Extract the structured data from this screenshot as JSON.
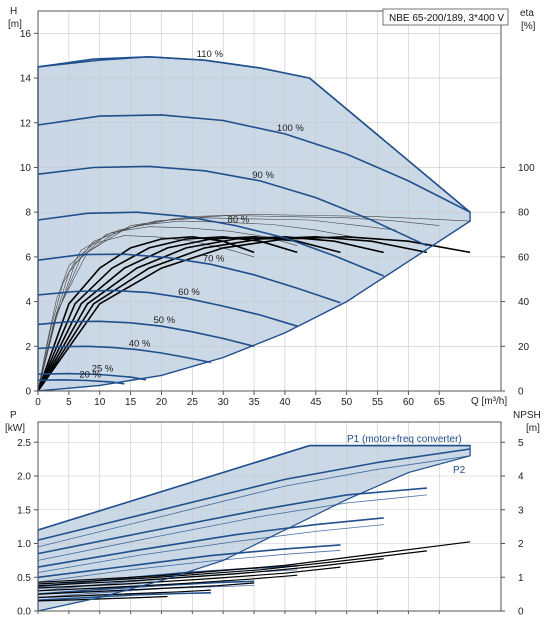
{
  "colors": {
    "grid": "#c8c8c8",
    "axis": "#555555",
    "fill_main": "#c5d4e3",
    "fill_light": "#e6eff9",
    "curve_blue": "#1f4f8c",
    "curve_black": "#000000",
    "thin_gray": "#444444"
  },
  "chart_data": [
    {
      "type": "line",
      "title": "NBE 65-200/189, 3*400 V",
      "y_label_left": "H",
      "y_unit_left": "[m]",
      "y_label_right": "eta",
      "y_unit_right": "[%]",
      "x_label": "Q [m³/h]",
      "xlim": [
        0,
        75
      ],
      "ylim": [
        0,
        17
      ],
      "y2lim": [
        0,
        170
      ],
      "x_ticks": [
        "0",
        "5",
        "10",
        "15",
        "20",
        "25",
        "30",
        "35",
        "40",
        "45",
        "50",
        "55",
        "60",
        "65"
      ],
      "y_ticks": [
        "0",
        "2",
        "4",
        "6",
        "8",
        "10",
        "12",
        "14",
        "16"
      ],
      "y2_ticks": [
        "0",
        "20",
        "40",
        "60",
        "80",
        "100"
      ],
      "grid": true,
      "speed_curves": [
        {
          "label": "110 %",
          "x": [
            0,
            9,
            18,
            27,
            36,
            44,
            70
          ],
          "y": [
            14.5,
            14.85,
            14.95,
            14.8,
            14.45,
            14.0,
            8.0
          ]
        },
        {
          "label": "100 %",
          "x": [
            0,
            10,
            20,
            30,
            40,
            50,
            60,
            70
          ],
          "y": [
            11.9,
            12.3,
            12.35,
            12.1,
            11.5,
            10.6,
            9.4,
            8.0
          ]
        },
        {
          "label": "90 %",
          "x": [
            0,
            9,
            18,
            27,
            36,
            45,
            54,
            63
          ],
          "y": [
            9.7,
            10.0,
            10.05,
            9.85,
            9.4,
            8.65,
            7.65,
            6.5
          ]
        },
        {
          "label": "80 %",
          "x": [
            0,
            8,
            16,
            24,
            32,
            40,
            48,
            56
          ],
          "y": [
            7.65,
            7.95,
            8.0,
            7.8,
            7.4,
            6.85,
            6.05,
            5.15
          ]
        },
        {
          "label": "70 %",
          "x": [
            0,
            7,
            14,
            21,
            28,
            35,
            42,
            49
          ],
          "y": [
            5.85,
            6.1,
            6.12,
            5.97,
            5.67,
            5.2,
            4.6,
            3.95
          ]
        },
        {
          "label": "60 %",
          "x": [
            0,
            6,
            12,
            18,
            24,
            30,
            36,
            42
          ],
          "y": [
            4.3,
            4.45,
            4.5,
            4.4,
            4.15,
            3.8,
            3.4,
            2.9
          ]
        },
        {
          "label": "50 %",
          "x": [
            0,
            5,
            10,
            15,
            20,
            25,
            30,
            35
          ],
          "y": [
            2.98,
            3.1,
            3.12,
            3.05,
            2.9,
            2.65,
            2.35,
            2.0
          ]
        },
        {
          "label": "40 %",
          "x": [
            0,
            4,
            8,
            12,
            16,
            20,
            24,
            28
          ],
          "y": [
            1.9,
            1.98,
            2.0,
            1.95,
            1.85,
            1.7,
            1.5,
            1.28
          ]
        },
        {
          "label": "25 %",
          "x": [
            0,
            5,
            10,
            15,
            17.5
          ],
          "y": [
            0.75,
            0.78,
            0.74,
            0.62,
            0.5
          ]
        },
        {
          "label": "20 %",
          "x": [
            0,
            4,
            8,
            12,
            14
          ],
          "y": [
            0.48,
            0.5,
            0.47,
            0.4,
            0.32
          ]
        }
      ],
      "efficiency_curves": [
        {
          "x": [
            0,
            10,
            20,
            30,
            40,
            50,
            60,
            70
          ],
          "y": [
            0,
            39,
            55,
            64,
            68,
            69,
            67,
            62
          ]
        },
        {
          "x": [
            0,
            9,
            18,
            27,
            36,
            45,
            54,
            63
          ],
          "y": [
            0,
            39,
            55,
            64,
            68,
            69,
            67,
            62
          ]
        },
        {
          "x": [
            0,
            8,
            16,
            24,
            32,
            40,
            48,
            56
          ],
          "y": [
            0,
            39,
            55,
            64,
            68,
            69,
            67,
            62
          ]
        },
        {
          "x": [
            0,
            7,
            14,
            21,
            28,
            35,
            42,
            49
          ],
          "y": [
            0,
            39,
            55,
            64,
            68,
            69,
            67,
            62
          ]
        },
        {
          "x": [
            0,
            6,
            12,
            18,
            24,
            30,
            36,
            42
          ],
          "y": [
            0,
            39,
            55,
            64,
            68,
            69,
            67,
            62
          ]
        },
        {
          "x": [
            0,
            5,
            10,
            15,
            20,
            25,
            30,
            35
          ],
          "y": [
            0,
            39,
            55,
            64,
            68,
            69,
            67,
            62
          ]
        }
      ],
      "motor_efficiency_curves": [
        {
          "x": [
            0,
            3,
            8,
            15,
            25,
            35,
            45,
            55,
            63,
            70
          ],
          "y": [
            0,
            35,
            62,
            74,
            78,
            79,
            78.5,
            78,
            77,
            76
          ]
        },
        {
          "x": [
            0,
            3,
            7,
            13,
            22,
            31,
            40,
            50,
            58,
            65
          ],
          "y": [
            0,
            34,
            60,
            72,
            77,
            78.5,
            78,
            77.5,
            76,
            74
          ]
        },
        {
          "x": [
            0,
            3,
            6,
            11,
            19,
            27,
            35,
            44,
            52,
            58
          ],
          "y": [
            0,
            33,
            57,
            70,
            76,
            77.5,
            77,
            76.5,
            74,
            72
          ]
        },
        {
          "x": [
            0,
            2.5,
            5,
            9,
            16,
            23,
            30,
            38,
            45,
            51
          ],
          "y": [
            0,
            30,
            53,
            67,
            74,
            76,
            75.5,
            74.5,
            72,
            69
          ]
        },
        {
          "x": [
            0,
            2,
            4,
            7,
            12,
            18,
            24,
            31,
            37,
            42
          ],
          "y": [
            0,
            27,
            48,
            63,
            71,
            73.5,
            73,
            71.5,
            69,
            65
          ]
        },
        {
          "x": [
            0,
            1.5,
            3,
            5,
            9,
            14,
            19,
            25,
            30,
            35
          ],
          "y": [
            0,
            22,
            41,
            56,
            66,
            69.5,
            69,
            67,
            64,
            60
          ]
        }
      ],
      "operating_area_outline": {
        "x": [
          0,
          0,
          10,
          18,
          27,
          36,
          44,
          70,
          70,
          60,
          50,
          40,
          30,
          20,
          10,
          0
        ],
        "y": [
          0,
          14.5,
          14.8,
          14.95,
          14.8,
          14.45,
          14.0,
          8.0,
          7.6,
          5.8,
          4.0,
          2.6,
          1.5,
          0.7,
          0.25,
          0
        ]
      }
    },
    {
      "type": "line",
      "y_label_left": "P",
      "y_unit_left": "[kW]",
      "y_label_right": "NPSH",
      "y_unit_right": "[m]",
      "xlim": [
        0,
        75
      ],
      "ylim": [
        0,
        2.8
      ],
      "y2lim": [
        0,
        5.6
      ],
      "x_ticks": [
        "0",
        "5",
        "10",
        "15",
        "20",
        "25",
        "30",
        "35",
        "40",
        "45",
        "50",
        "55",
        "60",
        "65"
      ],
      "y_ticks": [
        "0.0",
        "0.5",
        "1.0",
        "1.5",
        "2.0",
        "2.5"
      ],
      "y2_ticks": [
        "0",
        "1",
        "2",
        "3",
        "4",
        "5"
      ],
      "grid": true,
      "series_labels": [
        "P1 (motor+freq converter)",
        "P2"
      ],
      "power_outline": {
        "x": [
          0,
          0,
          44,
          70,
          70,
          60,
          50,
          40,
          30,
          20,
          10,
          0
        ],
        "y": [
          0,
          1.2,
          2.45,
          2.45,
          2.3,
          2.05,
          1.65,
          1.2,
          0.75,
          0.45,
          0.2,
          0
        ]
      },
      "p1_curves": [
        {
          "x": [
            0,
            44,
            70
          ],
          "y": [
            1.2,
            2.45,
            2.45
          ]
        },
        {
          "x": [
            0,
            20,
            40,
            55,
            70
          ],
          "y": [
            1.05,
            1.5,
            1.95,
            2.2,
            2.4
          ]
        },
        {
          "x": [
            0,
            18,
            36,
            50,
            63
          ],
          "y": [
            0.85,
            1.18,
            1.5,
            1.72,
            1.82
          ]
        },
        {
          "x": [
            0,
            16,
            32,
            45,
            56
          ],
          "y": [
            0.65,
            0.9,
            1.13,
            1.28,
            1.38
          ]
        },
        {
          "x": [
            0,
            14,
            28,
            40,
            49
          ],
          "y": [
            0.5,
            0.66,
            0.82,
            0.92,
            0.98
          ]
        },
        {
          "x": [
            0,
            12,
            24,
            34,
            42
          ],
          "y": [
            0.36,
            0.47,
            0.57,
            0.63,
            0.67
          ]
        },
        {
          "x": [
            0,
            10,
            20,
            29,
            35
          ],
          "y": [
            0.25,
            0.32,
            0.38,
            0.42,
            0.44
          ]
        },
        {
          "x": [
            0,
            8,
            16,
            23,
            28
          ],
          "y": [
            0.16,
            0.2,
            0.24,
            0.26,
            0.27
          ]
        }
      ],
      "p2_curves": [
        {
          "x": [
            0,
            20,
            40,
            55,
            70
          ],
          "y": [
            0.95,
            1.4,
            1.85,
            2.1,
            2.3
          ]
        },
        {
          "x": [
            0,
            18,
            36,
            50,
            63
          ],
          "y": [
            0.75,
            1.08,
            1.4,
            1.6,
            1.72
          ]
        },
        {
          "x": [
            0,
            16,
            32,
            45,
            56
          ],
          "y": [
            0.57,
            0.82,
            1.03,
            1.18,
            1.28
          ]
        },
        {
          "x": [
            0,
            14,
            28,
            40,
            49
          ],
          "y": [
            0.43,
            0.6,
            0.74,
            0.84,
            0.9
          ]
        },
        {
          "x": [
            0,
            12,
            24,
            34,
            42
          ],
          "y": [
            0.3,
            0.41,
            0.51,
            0.57,
            0.61
          ]
        },
        {
          "x": [
            0,
            10,
            20,
            29,
            35
          ],
          "y": [
            0.2,
            0.27,
            0.33,
            0.36,
            0.38
          ]
        }
      ],
      "npsh_curves": [
        {
          "x": [
            0,
            20,
            40,
            55,
            70
          ],
          "y": [
            0.85,
            1.05,
            1.35,
            1.7,
            2.05
          ]
        },
        {
          "x": [
            0,
            18,
            36,
            50,
            63
          ],
          "y": [
            0.8,
            0.98,
            1.22,
            1.5,
            1.78
          ]
        },
        {
          "x": [
            0,
            16,
            32,
            45,
            56
          ],
          "y": [
            0.75,
            0.9,
            1.1,
            1.32,
            1.55
          ]
        },
        {
          "x": [
            0,
            14,
            28,
            40,
            49
          ],
          "y": [
            0.68,
            0.8,
            0.96,
            1.12,
            1.3
          ]
        },
        {
          "x": [
            0,
            12,
            24,
            34,
            42
          ],
          "y": [
            0.6,
            0.7,
            0.82,
            0.94,
            1.06
          ]
        },
        {
          "x": [
            0,
            10,
            20,
            29,
            35
          ],
          "y": [
            0.5,
            0.58,
            0.67,
            0.75,
            0.83
          ]
        },
        {
          "x": [
            0,
            8,
            16,
            23,
            28
          ],
          "y": [
            0.4,
            0.46,
            0.52,
            0.57,
            0.62
          ]
        },
        {
          "x": [
            0,
            6,
            12,
            17,
            21
          ],
          "y": [
            0.3,
            0.33,
            0.37,
            0.4,
            0.43
          ]
        }
      ]
    }
  ]
}
